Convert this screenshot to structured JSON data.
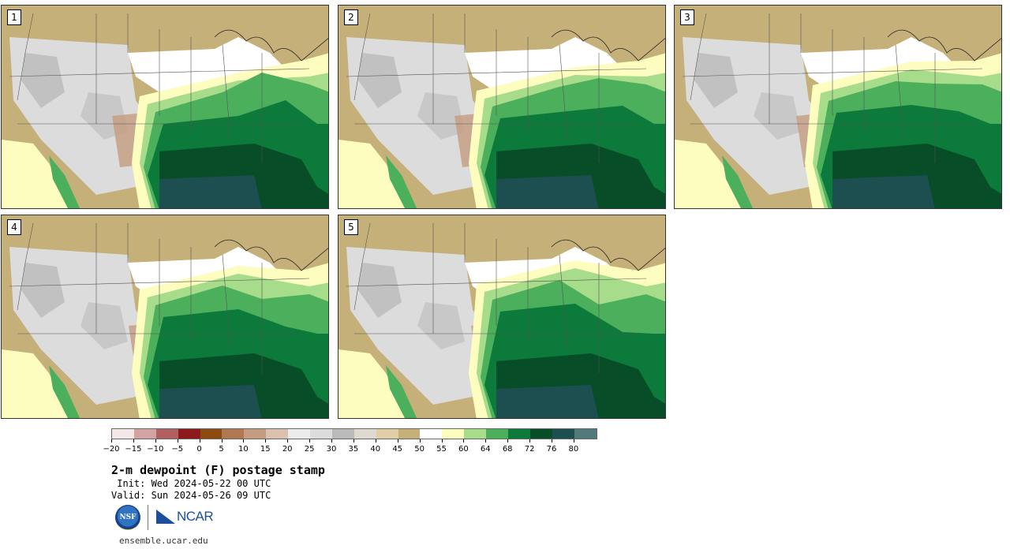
{
  "panels": [
    {
      "label": "1"
    },
    {
      "label": "2"
    },
    {
      "label": "3"
    },
    {
      "label": "4"
    },
    {
      "label": "5"
    }
  ],
  "legend": {
    "colors": [
      "#f3e7e7",
      "#d3a2a2",
      "#b06060",
      "#8c1a1a",
      "#8b4a10",
      "#b07850",
      "#c59c80",
      "#dcc0b0",
      "#ececec",
      "#dcdcdc",
      "#bababa",
      "#dedad0",
      "#e0cfa6",
      "#c6b07a",
      "#ffffff",
      "#fdfdc0",
      "#a6dc8a",
      "#4caf5c",
      "#0c7a3a",
      "#074d28",
      "#1e4f50",
      "#527a7a"
    ],
    "ticks": [
      "−20",
      "−15",
      "−10",
      "−5",
      "0",
      "5",
      "10",
      "15",
      "20",
      "25",
      "30",
      "35",
      "40",
      "45",
      "50",
      "55",
      "60",
      "64",
      "68",
      "72",
      "76",
      "80"
    ]
  },
  "title": "2-m dewpoint (F) postage stamp",
  "init": " Init: Wed 2024-05-22 00 UTC",
  "valid": "Valid: Sun 2024-05-26 09 UTC",
  "logos": {
    "nsf": "NSF",
    "ncar": "NCAR"
  },
  "footer": "ensemble.ucar.edu"
}
